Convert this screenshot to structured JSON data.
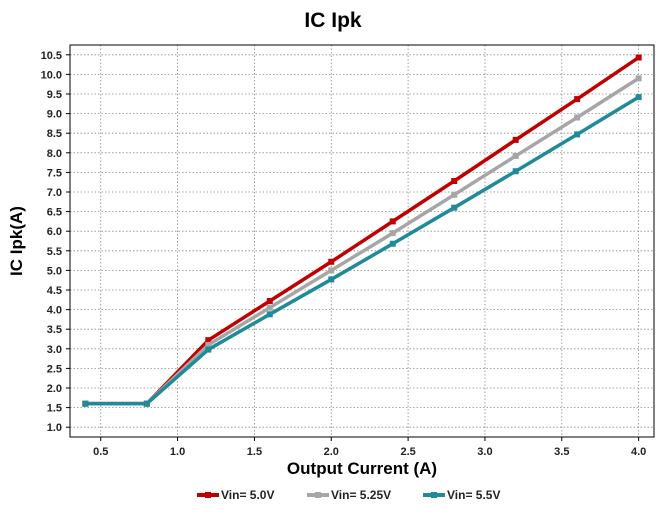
{
  "chart_data": {
    "type": "line",
    "title": "IC Ipk",
    "xlabel": "Output Current (A)",
    "ylabel": "IC Ipk(A)",
    "xlim": [
      0.3,
      4.1
    ],
    "ylim": [
      0.75,
      10.75
    ],
    "x_ticks": [
      "0.5",
      "1.0",
      "1.5",
      "2.0",
      "2.5",
      "3.0",
      "3.5",
      "4.0"
    ],
    "x_tick_values": [
      0.5,
      1.0,
      1.5,
      2.0,
      2.5,
      3.0,
      3.5,
      4.0
    ],
    "y_ticks": [
      "1.0",
      "1.5",
      "2.0",
      "2.5",
      "3.0",
      "3.5",
      "4.0",
      "4.5",
      "5.0",
      "5.5",
      "6.0",
      "6.5",
      "7.0",
      "7.5",
      "8.0",
      "8.5",
      "9.0",
      "9.5",
      "10.0",
      "10.5"
    ],
    "y_tick_values": [
      1.0,
      1.5,
      2.0,
      2.5,
      3.0,
      3.5,
      4.0,
      4.5,
      5.0,
      5.5,
      6.0,
      6.5,
      7.0,
      7.5,
      8.0,
      8.5,
      9.0,
      9.5,
      10.0,
      10.5
    ],
    "grid": true,
    "legend_position": "bottom",
    "x": [
      0.4,
      0.8,
      1.2,
      1.6,
      2.0,
      2.4,
      2.8,
      3.2,
      3.6,
      4.0
    ],
    "series": [
      {
        "name": "Vin= 5.0V",
        "color": "#c00000",
        "values": [
          1.6,
          1.6,
          3.22,
          4.22,
          5.22,
          6.25,
          7.28,
          8.33,
          9.37,
          10.43
        ]
      },
      {
        "name": "Vin= 5.25V",
        "color": "#a6a6a6",
        "values": [
          1.6,
          1.6,
          3.1,
          4.05,
          5.0,
          5.95,
          6.93,
          7.92,
          8.9,
          9.9
        ]
      },
      {
        "name": "Vin= 5.5V",
        "color": "#1f8a99",
        "values": [
          1.6,
          1.6,
          2.98,
          3.88,
          4.77,
          5.68,
          6.6,
          7.53,
          8.47,
          9.42
        ]
      }
    ]
  }
}
